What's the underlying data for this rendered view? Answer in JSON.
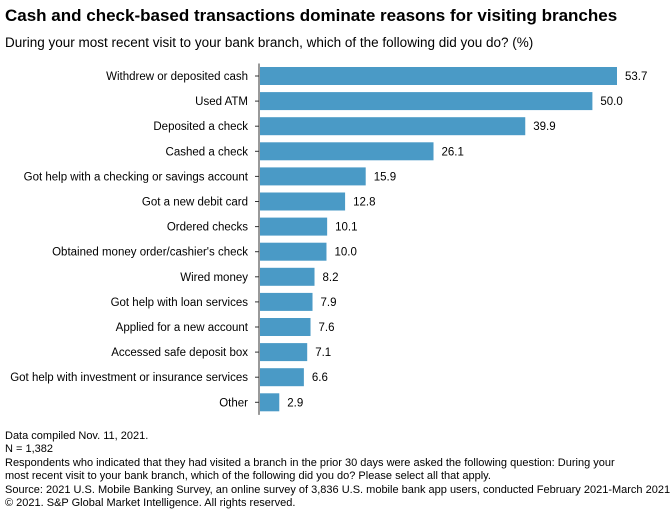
{
  "header": {
    "title": "Cash and check-based transactions dominate reasons for visiting branches",
    "subtitle": "During your most recent visit to your bank branch, which of the following did you do? (%)"
  },
  "chart_data": {
    "type": "bar",
    "orientation": "horizontal",
    "categories": [
      "Withdrew or deposited cash",
      "Used ATM",
      "Deposited a check",
      "Cashed a check",
      "Got help with a checking or savings account",
      "Got a new debit card",
      "Ordered checks",
      "Obtained money order/cashier's check",
      "Wired money",
      "Got help with loan services",
      "Applied for a new account",
      "Accessed safe deposit box",
      "Got help with investment or insurance services",
      "Other"
    ],
    "values": [
      53.7,
      50.0,
      39.9,
      26.1,
      15.9,
      12.8,
      10.1,
      10.0,
      8.2,
      7.9,
      7.6,
      7.1,
      6.6,
      2.9
    ],
    "value_labels": [
      "53.7",
      "50.0",
      "39.9",
      "26.1",
      "15.9",
      "12.8",
      "10.1",
      "10.0",
      "8.2",
      "7.9",
      "7.6",
      "7.1",
      "6.6",
      "2.9"
    ],
    "xlim": [
      0,
      53.7
    ],
    "bar_color": "#4a9ac6",
    "grid": false,
    "legend": false
  },
  "footer": {
    "notes": [
      "Data compiled Nov. 11, 2021.",
      "N = 1,382",
      "Respondents who indicated that they had visited a branch in the prior 30 days were asked the following question: During your",
      "most recent visit to your bank branch, which of the following did you do? Please select all that apply.",
      "Source: 2021 U.S. Mobile Banking Survey, an online survey of 3,836 U.S. mobile bank app users, conducted February 2021-March 2021",
      "© 2021. S&P Global Market Intelligence. All rights reserved."
    ]
  }
}
